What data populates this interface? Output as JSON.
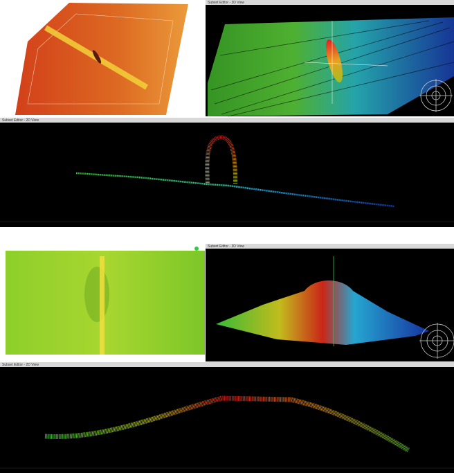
{
  "top": {
    "view3d_title": "Subset Editor - 3D View",
    "view2d_title": "Subset Editor - 2D View"
  },
  "bottom": {
    "view3d_title": "Subset Editor - 3D View",
    "view2d_title": "Subset Editor - 2D View"
  }
}
